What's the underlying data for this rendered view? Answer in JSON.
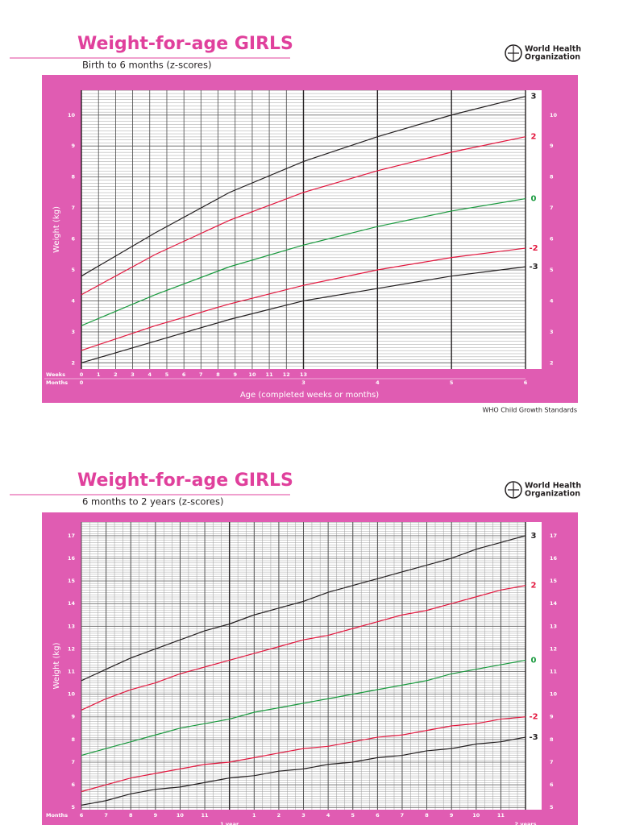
{
  "chart_data": [
    {
      "type": "line",
      "title": "Weight-for-age GIRLS",
      "subtitle": "Birth to 6 months (z-scores)",
      "organization": [
        "World Health",
        "Organization"
      ],
      "footer": "WHO Child Growth Standards",
      "ylabel": "Weight (kg)",
      "xlabel": "Age (completed weeks or months)",
      "x2label": "Weeks",
      "xtick_title": "Months",
      "panel_color": "#e05cb2",
      "minor_grid": "y",
      "x": [
        0,
        1,
        2,
        3,
        4,
        5,
        6
      ],
      "series": [
        {
          "name": "3",
          "color": "#231f20",
          "values": [
            4.8,
            6.2,
            7.5,
            8.5,
            9.3,
            10.0,
            10.6
          ]
        },
        {
          "name": "2",
          "color": "#e3173e",
          "values": [
            4.2,
            5.5,
            6.6,
            7.5,
            8.2,
            8.8,
            9.3
          ]
        },
        {
          "name": "0",
          "color": "#199a3e",
          "values": [
            3.2,
            4.2,
            5.1,
            5.8,
            6.4,
            6.9,
            7.3
          ]
        },
        {
          "name": "-2",
          "color": "#e3173e",
          "values": [
            2.4,
            3.2,
            3.9,
            4.5,
            5.0,
            5.4,
            5.7
          ]
        },
        {
          "name": "-3",
          "color": "#231f20",
          "values": [
            2.0,
            2.7,
            3.4,
            4.0,
            4.4,
            4.8,
            5.1
          ]
        }
      ],
      "xlim": [
        0,
        6
      ],
      "ylim": [
        1.8,
        10.8
      ],
      "xticks": [
        0,
        3,
        4,
        5,
        6
      ],
      "x2ticks": [
        {
          "value": 0,
          "label": "0"
        },
        {
          "value": 0.231,
          "label": "1"
        },
        {
          "value": 0.462,
          "label": "2"
        },
        {
          "value": 0.692,
          "label": "3"
        },
        {
          "value": 0.923,
          "label": "4"
        },
        {
          "value": 1.154,
          "label": "5"
        },
        {
          "value": 1.385,
          "label": "6"
        },
        {
          "value": 1.615,
          "label": "7"
        },
        {
          "value": 1.846,
          "label": "8"
        },
        {
          "value": 2.077,
          "label": "9"
        },
        {
          "value": 2.308,
          "label": "10"
        },
        {
          "value": 2.538,
          "label": "11"
        },
        {
          "value": 2.769,
          "label": "12"
        },
        {
          "value": 3,
          "label": "13"
        }
      ],
      "yticks": [
        2,
        3,
        4,
        5,
        6,
        7,
        8,
        9,
        10
      ]
    },
    {
      "type": "line",
      "title": "Weight-for-age GIRLS",
      "subtitle": "6 months to 2 years (z-scores)",
      "organization": [
        "World Health",
        "Organization"
      ],
      "ylabel": "Weight (kg)",
      "xtick_title": "Months",
      "panel_color": "#e05cb2",
      "minor_grid": "xy",
      "x": [
        6,
        7,
        8,
        9,
        10,
        11,
        12,
        13,
        14,
        15,
        16,
        17,
        18,
        19,
        20,
        21,
        22,
        23,
        24
      ],
      "series": [
        {
          "name": "3",
          "color": "#231f20",
          "values": [
            10.6,
            11.1,
            11.6,
            12.0,
            12.4,
            12.8,
            13.1,
            13.5,
            13.8,
            14.1,
            14.5,
            14.8,
            15.1,
            15.4,
            15.7,
            16.0,
            16.4,
            16.7,
            17.0
          ]
        },
        {
          "name": "2",
          "color": "#e3173e",
          "values": [
            9.3,
            9.8,
            10.2,
            10.5,
            10.9,
            11.2,
            11.5,
            11.8,
            12.1,
            12.4,
            12.6,
            12.9,
            13.2,
            13.5,
            13.7,
            14.0,
            14.3,
            14.6,
            14.8
          ]
        },
        {
          "name": "0",
          "color": "#199a3e",
          "values": [
            7.3,
            7.6,
            7.9,
            8.2,
            8.5,
            8.7,
            8.9,
            9.2,
            9.4,
            9.6,
            9.8,
            10.0,
            10.2,
            10.4,
            10.6,
            10.9,
            11.1,
            11.3,
            11.5
          ]
        },
        {
          "name": "-2",
          "color": "#e3173e",
          "values": [
            5.7,
            6.0,
            6.3,
            6.5,
            6.7,
            6.9,
            7.0,
            7.2,
            7.4,
            7.6,
            7.7,
            7.9,
            8.1,
            8.2,
            8.4,
            8.6,
            8.7,
            8.9,
            9.0
          ]
        },
        {
          "name": "-3",
          "color": "#231f20",
          "values": [
            5.1,
            5.3,
            5.6,
            5.8,
            5.9,
            6.1,
            6.3,
            6.4,
            6.6,
            6.7,
            6.9,
            7.0,
            7.2,
            7.3,
            7.5,
            7.6,
            7.8,
            7.9,
            8.1
          ]
        }
      ],
      "xlim": [
        6,
        24
      ],
      "ylim": [
        4.9,
        17.6
      ],
      "xticks": [
        6,
        7,
        8,
        9,
        10,
        11,
        {
          "value": 12,
          "label": "1 year"
        },
        {
          "value": 13,
          "label": "1"
        },
        {
          "value": 14,
          "label": "2"
        },
        {
          "value": 15,
          "label": "3"
        },
        {
          "value": 16,
          "label": "4"
        },
        {
          "value": 17,
          "label": "5"
        },
        {
          "value": 18,
          "label": "6"
        },
        {
          "value": 19,
          "label": "7"
        },
        {
          "value": 20,
          "label": "8"
        },
        {
          "value": 21,
          "label": "9"
        },
        {
          "value": 22,
          "label": "10"
        },
        {
          "value": 23,
          "label": "11"
        },
        {
          "value": 24,
          "label": "2 years"
        }
      ],
      "yticks": [
        5,
        6,
        7,
        8,
        9,
        10,
        11,
        12,
        13,
        14,
        15,
        16,
        17
      ]
    }
  ]
}
